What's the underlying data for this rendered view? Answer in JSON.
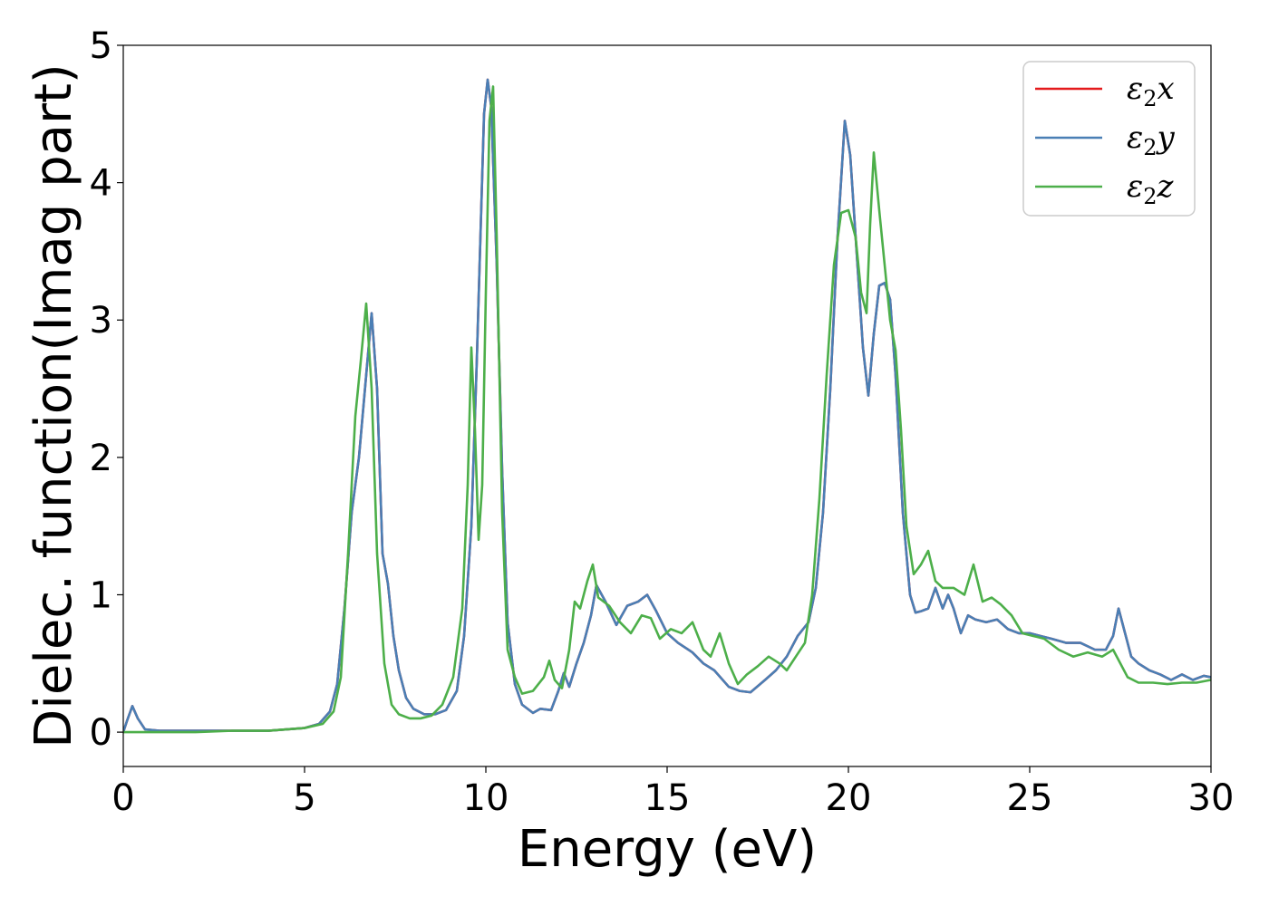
{
  "chart_data": {
    "type": "line",
    "title": "",
    "xlabel": "Energy (eV)",
    "ylabel": "Dielec. function(Imag part)",
    "xlim": [
      0,
      30
    ],
    "ylim": [
      -0.25,
      5.0
    ],
    "xticks": [
      0,
      5,
      10,
      15,
      20,
      25,
      30
    ],
    "yticks": [
      0,
      1,
      2,
      3,
      4,
      5
    ],
    "xtick_labels": [
      "0",
      "5",
      "10",
      "15",
      "20",
      "25",
      "30"
    ],
    "ytick_labels": [
      "0",
      "1",
      "2",
      "3",
      "4",
      "5"
    ],
    "grid": false,
    "legend_position": "top-right",
    "series": [
      {
        "name": "ε2x",
        "legend_base": "ε",
        "legend_sub": "2",
        "legend_var": "x",
        "color": "#e41a1c",
        "hidden_under": "ε2y",
        "x": [
          0,
          0.1,
          0.25,
          0.4,
          0.6,
          1,
          2,
          3,
          4,
          5,
          5.4,
          5.7,
          5.9,
          6.1,
          6.3,
          6.5,
          6.7,
          6.85,
          7.0,
          7.15,
          7.3,
          7.45,
          7.6,
          7.8,
          8.0,
          8.3,
          8.6,
          8.9,
          9.2,
          9.4,
          9.6,
          9.75,
          9.85,
          9.95,
          10.05,
          10.15,
          10.3,
          10.45,
          10.6,
          10.8,
          11.0,
          11.3,
          11.5,
          11.8,
          12.0,
          12.15,
          12.3,
          12.5,
          12.7,
          12.9,
          13.05,
          13.3,
          13.6,
          13.9,
          14.2,
          14.45,
          14.7,
          15.0,
          15.3,
          15.7,
          16.0,
          16.3,
          16.7,
          17.0,
          17.3,
          17.7,
          18.0,
          18.3,
          18.6,
          18.9,
          19.1,
          19.3,
          19.5,
          19.7,
          19.9,
          20.05,
          20.2,
          20.4,
          20.55,
          20.7,
          20.85,
          21.0,
          21.15,
          21.3,
          21.5,
          21.7,
          21.85,
          22.0,
          22.2,
          22.4,
          22.6,
          22.75,
          22.9,
          23.1,
          23.3,
          23.5,
          23.8,
          24.1,
          24.4,
          24.7,
          25.0,
          25.3,
          25.6,
          26.0,
          26.4,
          26.8,
          27.1,
          27.3,
          27.45,
          27.6,
          27.8,
          28.0,
          28.3,
          28.6,
          28.9,
          29.2,
          29.5,
          29.8,
          30
        ],
        "y": [
          0.0,
          0.08,
          0.19,
          0.1,
          0.02,
          0.01,
          0.01,
          0.01,
          0.01,
          0.03,
          0.06,
          0.15,
          0.35,
          0.9,
          1.6,
          2.0,
          2.6,
          3.05,
          2.5,
          1.3,
          1.08,
          0.7,
          0.45,
          0.25,
          0.17,
          0.13,
          0.13,
          0.16,
          0.3,
          0.7,
          1.5,
          2.7,
          3.6,
          4.5,
          4.75,
          4.55,
          3.4,
          1.9,
          0.8,
          0.35,
          0.2,
          0.14,
          0.17,
          0.16,
          0.3,
          0.43,
          0.33,
          0.5,
          0.65,
          0.85,
          1.07,
          0.95,
          0.78,
          0.92,
          0.95,
          1.0,
          0.88,
          0.72,
          0.65,
          0.58,
          0.5,
          0.45,
          0.33,
          0.3,
          0.29,
          0.38,
          0.45,
          0.55,
          0.7,
          0.8,
          1.05,
          1.6,
          2.5,
          3.6,
          4.45,
          4.2,
          3.6,
          2.8,
          2.45,
          2.9,
          3.25,
          3.27,
          3.15,
          2.6,
          1.6,
          1.0,
          0.87,
          0.88,
          0.9,
          1.05,
          0.9,
          1.0,
          0.9,
          0.72,
          0.85,
          0.82,
          0.8,
          0.82,
          0.75,
          0.72,
          0.72,
          0.7,
          0.68,
          0.65,
          0.65,
          0.6,
          0.6,
          0.7,
          0.9,
          0.75,
          0.55,
          0.5,
          0.45,
          0.42,
          0.38,
          0.42,
          0.38,
          0.41,
          0.4
        ]
      },
      {
        "name": "ε2y",
        "legend_base": "ε",
        "legend_sub": "2",
        "legend_var": "y",
        "color": "#4a7fb5",
        "x": [
          0,
          0.1,
          0.25,
          0.4,
          0.6,
          1,
          2,
          3,
          4,
          5,
          5.4,
          5.7,
          5.9,
          6.1,
          6.3,
          6.5,
          6.7,
          6.85,
          7.0,
          7.15,
          7.3,
          7.45,
          7.6,
          7.8,
          8.0,
          8.3,
          8.6,
          8.9,
          9.2,
          9.4,
          9.6,
          9.75,
          9.85,
          9.95,
          10.05,
          10.15,
          10.3,
          10.45,
          10.6,
          10.8,
          11.0,
          11.3,
          11.5,
          11.8,
          12.0,
          12.15,
          12.3,
          12.5,
          12.7,
          12.9,
          13.05,
          13.3,
          13.6,
          13.9,
          14.2,
          14.45,
          14.7,
          15.0,
          15.3,
          15.7,
          16.0,
          16.3,
          16.7,
          17.0,
          17.3,
          17.7,
          18.0,
          18.3,
          18.6,
          18.9,
          19.1,
          19.3,
          19.5,
          19.7,
          19.9,
          20.05,
          20.2,
          20.4,
          20.55,
          20.7,
          20.85,
          21.0,
          21.15,
          21.3,
          21.5,
          21.7,
          21.85,
          22.0,
          22.2,
          22.4,
          22.6,
          22.75,
          22.9,
          23.1,
          23.3,
          23.5,
          23.8,
          24.1,
          24.4,
          24.7,
          25.0,
          25.3,
          25.6,
          26.0,
          26.4,
          26.8,
          27.1,
          27.3,
          27.45,
          27.6,
          27.8,
          28.0,
          28.3,
          28.6,
          28.9,
          29.2,
          29.5,
          29.8,
          30
        ],
        "y": [
          0.0,
          0.08,
          0.19,
          0.1,
          0.02,
          0.01,
          0.01,
          0.01,
          0.01,
          0.03,
          0.06,
          0.15,
          0.35,
          0.9,
          1.6,
          2.0,
          2.6,
          3.05,
          2.5,
          1.3,
          1.08,
          0.7,
          0.45,
          0.25,
          0.17,
          0.13,
          0.13,
          0.16,
          0.3,
          0.7,
          1.5,
          2.7,
          3.6,
          4.5,
          4.75,
          4.55,
          3.4,
          1.9,
          0.8,
          0.35,
          0.2,
          0.14,
          0.17,
          0.16,
          0.3,
          0.43,
          0.33,
          0.5,
          0.65,
          0.85,
          1.07,
          0.95,
          0.78,
          0.92,
          0.95,
          1.0,
          0.88,
          0.72,
          0.65,
          0.58,
          0.5,
          0.45,
          0.33,
          0.3,
          0.29,
          0.38,
          0.45,
          0.55,
          0.7,
          0.8,
          1.05,
          1.6,
          2.5,
          3.6,
          4.45,
          4.2,
          3.6,
          2.8,
          2.45,
          2.9,
          3.25,
          3.27,
          3.15,
          2.6,
          1.6,
          1.0,
          0.87,
          0.88,
          0.9,
          1.05,
          0.9,
          1.0,
          0.9,
          0.72,
          0.85,
          0.82,
          0.8,
          0.82,
          0.75,
          0.72,
          0.72,
          0.7,
          0.68,
          0.65,
          0.65,
          0.6,
          0.6,
          0.7,
          0.9,
          0.75,
          0.55,
          0.5,
          0.45,
          0.42,
          0.38,
          0.42,
          0.38,
          0.41,
          0.4
        ]
      },
      {
        "name": "ε2z",
        "legend_base": "ε",
        "legend_sub": "2",
        "legend_var": "z",
        "color": "#4daf4a",
        "x": [
          0,
          0.5,
          1,
          2,
          3,
          4,
          5,
          5.5,
          5.8,
          6.0,
          6.2,
          6.4,
          6.55,
          6.7,
          6.85,
          7.0,
          7.2,
          7.4,
          7.6,
          7.9,
          8.2,
          8.5,
          8.8,
          9.1,
          9.35,
          9.5,
          9.6,
          9.7,
          9.8,
          9.9,
          10.0,
          10.1,
          10.2,
          10.3,
          10.45,
          10.6,
          10.8,
          11.0,
          11.3,
          11.6,
          11.75,
          11.9,
          12.1,
          12.3,
          12.45,
          12.6,
          12.8,
          12.95,
          13.1,
          13.4,
          13.7,
          14.0,
          14.3,
          14.55,
          14.8,
          15.1,
          15.4,
          15.7,
          16.0,
          16.2,
          16.45,
          16.7,
          16.95,
          17.2,
          17.5,
          17.8,
          18.1,
          18.3,
          18.55,
          18.8,
          19.0,
          19.2,
          19.4,
          19.6,
          19.8,
          20.0,
          20.2,
          20.35,
          20.5,
          20.6,
          20.7,
          20.85,
          21.0,
          21.15,
          21.3,
          21.45,
          21.6,
          21.8,
          22.0,
          22.2,
          22.4,
          22.6,
          22.9,
          23.2,
          23.45,
          23.7,
          23.95,
          24.2,
          24.5,
          24.8,
          25.1,
          25.4,
          25.8,
          26.2,
          26.6,
          27.0,
          27.3,
          27.5,
          27.7,
          28.0,
          28.4,
          28.8,
          29.2,
          29.6,
          30
        ],
        "y": [
          0.0,
          0.0,
          0.0,
          0.0,
          0.01,
          0.01,
          0.03,
          0.06,
          0.15,
          0.4,
          1.3,
          2.3,
          2.7,
          3.12,
          2.5,
          1.3,
          0.5,
          0.2,
          0.13,
          0.1,
          0.1,
          0.12,
          0.2,
          0.4,
          0.9,
          1.8,
          2.8,
          2.2,
          1.4,
          1.8,
          3.2,
          4.45,
          4.7,
          3.6,
          1.6,
          0.6,
          0.4,
          0.28,
          0.3,
          0.4,
          0.52,
          0.38,
          0.32,
          0.6,
          0.95,
          0.9,
          1.1,
          1.22,
          0.98,
          0.92,
          0.8,
          0.72,
          0.85,
          0.83,
          0.68,
          0.75,
          0.72,
          0.8,
          0.6,
          0.55,
          0.72,
          0.5,
          0.35,
          0.42,
          0.48,
          0.55,
          0.5,
          0.45,
          0.55,
          0.65,
          1.0,
          1.7,
          2.6,
          3.4,
          3.78,
          3.8,
          3.6,
          3.2,
          3.05,
          3.7,
          4.22,
          3.8,
          3.4,
          3.0,
          2.78,
          2.2,
          1.5,
          1.15,
          1.22,
          1.32,
          1.1,
          1.05,
          1.05,
          1.0,
          1.22,
          0.95,
          0.98,
          0.93,
          0.85,
          0.72,
          0.7,
          0.68,
          0.6,
          0.55,
          0.58,
          0.55,
          0.6,
          0.5,
          0.4,
          0.36,
          0.36,
          0.35,
          0.36,
          0.36,
          0.38
        ]
      }
    ]
  }
}
